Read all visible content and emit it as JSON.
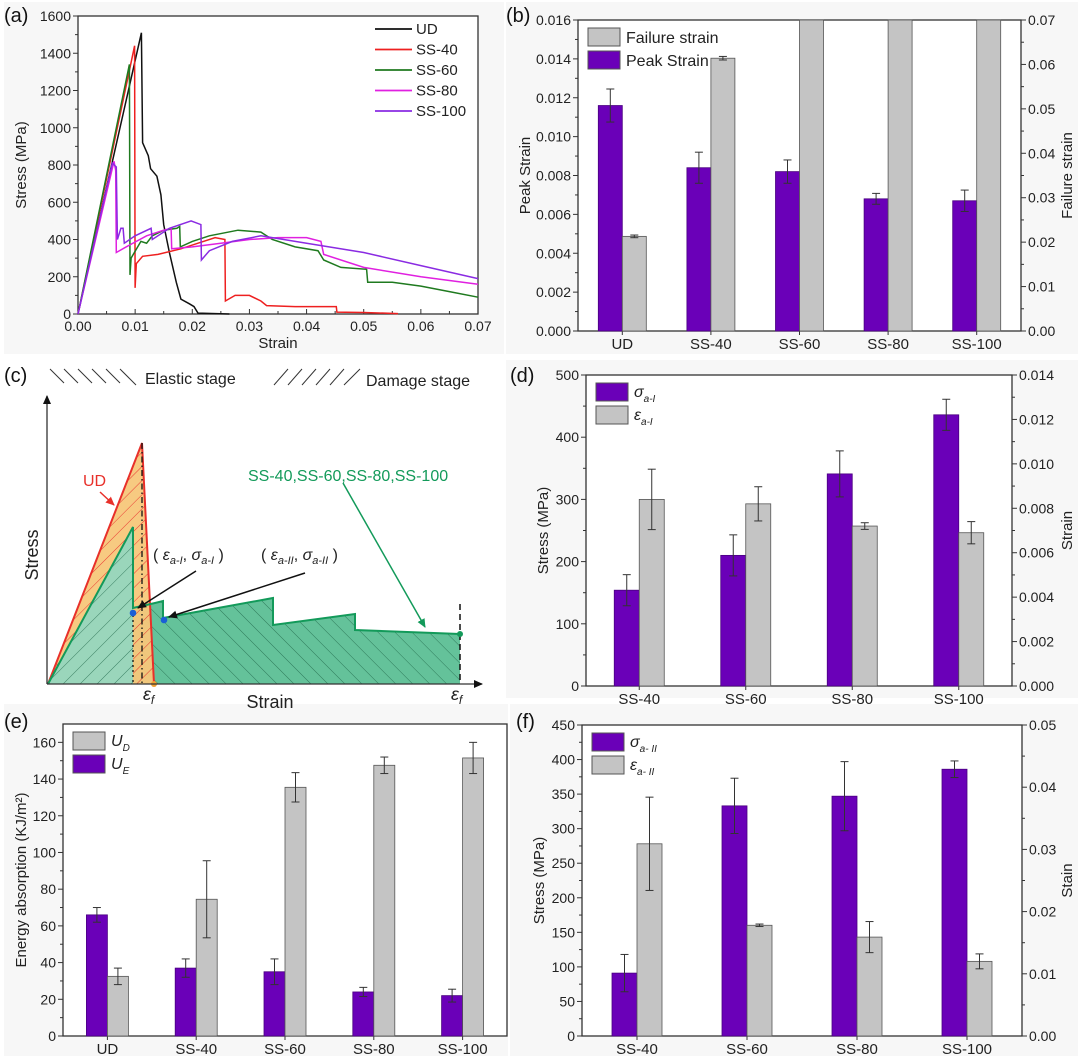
{
  "colors": {
    "purple": "#6a00b8",
    "gray": "#c4c4c4",
    "UD": "#111111",
    "SS-40": "#ee2020",
    "SS-60": "#1f7a1f",
    "SS-80": "#e020e0",
    "SS-100": "#8a2be2",
    "schematic_red": "#e8302a",
    "schematic_orange_fill": "#f7c77a",
    "schematic_green": "#139a5a",
    "schematic_green_fill": "#5cbf95",
    "point_blue": "#1a5fd6"
  },
  "chart_data": [
    {
      "id": "a",
      "panel_label": "(a)",
      "type": "line",
      "xlabel": "Strain",
      "ylabel": "Stress (MPa)",
      "xlim": [
        0,
        0.07
      ],
      "ylim": [
        0,
        1600
      ],
      "xticks": [
        0.0,
        0.01,
        0.02,
        0.03,
        0.04,
        0.05,
        0.06,
        0.07
      ],
      "xtick_labels": [
        "0.00",
        "0.01",
        "0.02",
        "0.03",
        "0.04",
        "0.05",
        "0.06",
        "0.07"
      ],
      "yticks": [
        0,
        200,
        400,
        600,
        800,
        1000,
        1200,
        1400,
        1600
      ],
      "ytick_labels": [
        "0",
        "200",
        "400",
        "600",
        "800",
        "1000",
        "1200",
        "1400",
        "1600"
      ],
      "legend_position": "top-right",
      "series": [
        {
          "name": "UD",
          "points": [
            [
              0,
              0
            ],
            [
              0.0111,
              1510
            ],
            [
              0.0113,
              920
            ],
            [
              0.0123,
              850
            ],
            [
              0.0127,
              780
            ],
            [
              0.0138,
              740
            ],
            [
              0.0145,
              640
            ],
            [
              0.015,
              480
            ],
            [
              0.016,
              330
            ],
            [
              0.0172,
              170
            ],
            [
              0.018,
              80
            ],
            [
              0.0195,
              55
            ],
            [
              0.0203,
              40
            ],
            [
              0.021,
              5
            ],
            [
              0.0265,
              0
            ]
          ]
        },
        {
          "name": "SS-40",
          "points": [
            [
              0,
              0
            ],
            [
              0.0099,
              1440
            ],
            [
              0.01,
              140
            ],
            [
              0.0102,
              270
            ],
            [
              0.0113,
              310
            ],
            [
              0.014,
              320
            ],
            [
              0.018,
              350
            ],
            [
              0.021,
              380
            ],
            [
              0.024,
              410
            ],
            [
              0.0257,
              400
            ],
            [
              0.0258,
              70
            ],
            [
              0.0275,
              100
            ],
            [
              0.03,
              100
            ],
            [
              0.032,
              70
            ],
            [
              0.033,
              45
            ],
            [
              0.038,
              40
            ],
            [
              0.044,
              40
            ],
            [
              0.0452,
              40
            ],
            [
              0.0453,
              10
            ],
            [
              0.05,
              8
            ],
            [
              0.056,
              2
            ]
          ]
        },
        {
          "name": "SS-60",
          "points": [
            [
              0,
              0
            ],
            [
              0.009,
              1340
            ],
            [
              0.0091,
              210
            ],
            [
              0.0093,
              300
            ],
            [
              0.011,
              390
            ],
            [
              0.012,
              380
            ],
            [
              0.013,
              420
            ],
            [
              0.015,
              450
            ],
            [
              0.0173,
              460
            ],
            [
              0.0178,
              470
            ],
            [
              0.0179,
              360
            ],
            [
              0.02,
              390
            ],
            [
              0.023,
              420
            ],
            [
              0.028,
              450
            ],
            [
              0.032,
              440
            ],
            [
              0.034,
              400
            ],
            [
              0.038,
              360
            ],
            [
              0.042,
              340
            ],
            [
              0.043,
              290
            ],
            [
              0.046,
              250
            ],
            [
              0.0505,
              240
            ],
            [
              0.0507,
              170
            ],
            [
              0.055,
              170
            ],
            [
              0.06,
              150
            ],
            [
              0.065,
              120
            ],
            [
              0.07,
              90
            ]
          ]
        },
        {
          "name": "SS-80",
          "points": [
            [
              0,
              0
            ],
            [
              0.0063,
              820
            ],
            [
              0.0066,
              770
            ],
            [
              0.0067,
              330
            ],
            [
              0.009,
              370
            ],
            [
              0.012,
              420
            ],
            [
              0.015,
              450
            ],
            [
              0.0163,
              460
            ],
            [
              0.0164,
              350
            ],
            [
              0.02,
              360
            ],
            [
              0.025,
              380
            ],
            [
              0.03,
              400
            ],
            [
              0.035,
              410
            ],
            [
              0.04,
              410
            ],
            [
              0.0425,
              390
            ],
            [
              0.043,
              320
            ],
            [
              0.05,
              250
            ],
            [
              0.06,
              200
            ],
            [
              0.07,
              160
            ]
          ]
        },
        {
          "name": "SS-100",
          "points": [
            [
              0,
              0
            ],
            [
              0.006,
              810
            ],
            [
              0.0067,
              790
            ],
            [
              0.0069,
              400
            ],
            [
              0.0075,
              460
            ],
            [
              0.0079,
              460
            ],
            [
              0.0081,
              380
            ],
            [
              0.01,
              420
            ],
            [
              0.0128,
              460
            ],
            [
              0.013,
              400
            ],
            [
              0.016,
              460
            ],
            [
              0.0198,
              500
            ],
            [
              0.0215,
              480
            ],
            [
              0.0216,
              290
            ],
            [
              0.023,
              340
            ],
            [
              0.027,
              390
            ],
            [
              0.032,
              420
            ],
            [
              0.04,
              380
            ],
            [
              0.05,
              330
            ],
            [
              0.06,
              260
            ],
            [
              0.07,
              190
            ]
          ]
        }
      ]
    },
    {
      "id": "b",
      "panel_label": "(b)",
      "type": "bar",
      "categories": [
        "UD",
        "SS-40",
        "SS-60",
        "SS-80",
        "SS-100"
      ],
      "ylabel": "Peak Strain",
      "y2label": "Failure strain",
      "ylim": [
        0,
        0.016
      ],
      "y2lim": [
        0,
        0.07
      ],
      "yticks": [
        0,
        0.002,
        0.004,
        0.006,
        0.008,
        0.01,
        0.012,
        0.014,
        0.016
      ],
      "ytick_labels": [
        "0.000",
        "0.002",
        "0.004",
        "0.006",
        "0.008",
        "0.010",
        "0.012",
        "0.014",
        "0.016"
      ],
      "y2ticks": [
        0,
        0.01,
        0.02,
        0.03,
        0.04,
        0.05,
        0.06,
        0.07
      ],
      "y2tick_labels": [
        "0.00",
        "0.01",
        "0.02",
        "0.03",
        "0.04",
        "0.05",
        "0.06",
        "0.07"
      ],
      "legend_position": "top-left",
      "legend": [
        "Failure strain",
        "Peak Strain"
      ],
      "series": [
        {
          "name": "Peak Strain",
          "axis": "left",
          "color": "purple",
          "values": [
            0.0116,
            0.0084,
            0.0082,
            0.0068,
            0.0067
          ],
          "errors": [
            0.00085,
            0.0008,
            0.0006,
            0.00028,
            0.00055
          ]
        },
        {
          "name": "Failure strain",
          "axis": "right",
          "color": "gray",
          "values": [
            0.0213,
            0.0614,
            0.07,
            0.07,
            0.07
          ],
          "errors": [
            0.0003,
            0.0004,
            0,
            0,
            0
          ]
        }
      ]
    },
    {
      "id": "c",
      "panel_label": "(c)",
      "type": "diagram",
      "xlabel": "Strain",
      "ylabel": "Stress",
      "legend": [
        "Elastic stage",
        "Damage stage"
      ],
      "labels": {
        "ud": "UD",
        "ss": "SS-40,SS-60,SS-80,SS-100",
        "point1_open": "( ",
        "point1_eps": "ε",
        "point1_eps_sub": "a-I",
        "point1_sep": ", ",
        "point1_sig": "σ",
        "point1_sig_sub": "a-I",
        "point1_close": " )",
        "point2_eps_sub": "a-II",
        "point2_sig_sub": "a-II",
        "ef": "ε",
        "ef_sub": "f"
      }
    },
    {
      "id": "d",
      "panel_label": "(d)",
      "type": "bar",
      "categories": [
        "SS-40",
        "SS-60",
        "SS-80",
        "SS-100"
      ],
      "ylabel": "Stress (MPa)",
      "y2label": "Strain",
      "ylim": [
        0,
        500
      ],
      "y2lim": [
        0,
        0.014
      ],
      "yticks": [
        0,
        100,
        200,
        300,
        400,
        500
      ],
      "ytick_labels": [
        "0",
        "100",
        "200",
        "300",
        "400",
        "500"
      ],
      "y2ticks": [
        0,
        0.002,
        0.004,
        0.006,
        0.008,
        0.01,
        0.012,
        0.014
      ],
      "y2tick_labels": [
        "0.000",
        "0.002",
        "0.004",
        "0.006",
        "0.008",
        "0.010",
        "0.012",
        "0.014"
      ],
      "legend_position": "top-left",
      "legend": [
        {
          "sym": "σ",
          "sub": "a-I"
        },
        {
          "sym": "ε",
          "sub": "a-I"
        }
      ],
      "series": [
        {
          "name": "σ a-I",
          "axis": "left",
          "color": "purple",
          "values": [
            154,
            210,
            341,
            436
          ],
          "errors": [
            25,
            33,
            37,
            25
          ]
        },
        {
          "name": "ε a-I",
          "axis": "right",
          "color": "gray",
          "values": [
            0.0084,
            0.0082,
            0.0072,
            0.0069
          ],
          "errors": [
            0.00136,
            0.00077,
            0.00015,
            0.0005
          ]
        }
      ]
    },
    {
      "id": "e",
      "panel_label": "(e)",
      "type": "bar",
      "categories": [
        "UD",
        "SS-40",
        "SS-60",
        "SS-80",
        "SS-100"
      ],
      "ylabel": "Energy absorption (KJ/m²)",
      "ylim": [
        0,
        170
      ],
      "yticks": [
        0,
        20,
        40,
        60,
        80,
        100,
        120,
        140,
        160
      ],
      "ytick_labels": [
        "0",
        "20",
        "40",
        "60",
        "80",
        "100",
        "120",
        "140",
        "160"
      ],
      "legend_position": "top-left",
      "legend": [
        {
          "sym": "U",
          "sub": "D"
        },
        {
          "sym": "U",
          "sub": "E"
        }
      ],
      "series": [
        {
          "name": "U E",
          "color": "purple",
          "values": [
            66,
            37,
            35,
            24,
            22
          ],
          "errors": [
            4,
            5,
            7,
            2.5,
            3.5
          ]
        },
        {
          "name": "U D",
          "color": "gray",
          "values": [
            32.5,
            74.5,
            135.5,
            147.5,
            151.5
          ],
          "errors": [
            4.5,
            21,
            8,
            4.5,
            8.5
          ]
        }
      ]
    },
    {
      "id": "f",
      "panel_label": "(f)",
      "type": "bar",
      "categories": [
        "SS-40",
        "SS-60",
        "SS-80",
        "SS-100"
      ],
      "ylabel": "Stress (MPa)",
      "y2label": "Stain",
      "ylim": [
        0,
        450
      ],
      "y2lim": [
        0,
        0.05
      ],
      "yticks": [
        0,
        50,
        100,
        150,
        200,
        250,
        300,
        350,
        400,
        450
      ],
      "ytick_labels": [
        "0",
        "50",
        "100",
        "150",
        "200",
        "250",
        "300",
        "350",
        "400",
        "450"
      ],
      "y2ticks": [
        0,
        0.01,
        0.02,
        0.03,
        0.04,
        0.05
      ],
      "y2tick_labels": [
        "0.00",
        "0.01",
        "0.02",
        "0.03",
        "0.04",
        "0.05"
      ],
      "legend_position": "top-left",
      "legend": [
        {
          "sym": "σ",
          "sub": "a- II"
        },
        {
          "sym": "ε",
          "sub": "a- II"
        }
      ],
      "series": [
        {
          "name": "σ a-II",
          "axis": "left",
          "color": "purple",
          "values": [
            91,
            333,
            347,
            386
          ],
          "errors": [
            27,
            40,
            50,
            12
          ]
        },
        {
          "name": "ε a-II",
          "axis": "right",
          "color": "gray",
          "values": [
            0.0309,
            0.0178,
            0.0159,
            0.012
          ],
          "errors": [
            0.0075,
            0.0002,
            0.0025,
            0.0012
          ]
        }
      ]
    }
  ]
}
